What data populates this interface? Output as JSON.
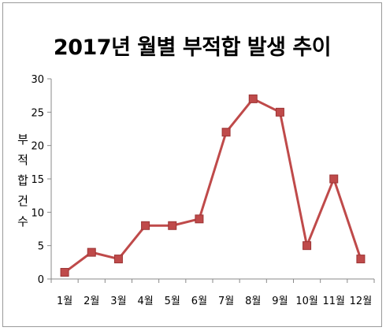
{
  "chart_data": {
    "type": "line",
    "title": "2017년 월별 부적합 발생 추이",
    "xlabel": "",
    "ylabel": "부적합건수",
    "categories": [
      "1월",
      "2월",
      "3월",
      "4월",
      "5월",
      "6월",
      "7월",
      "8월",
      "9월",
      "10월",
      "11월",
      "12월"
    ],
    "series": [
      {
        "values": [
          1,
          4,
          3,
          8,
          8,
          9,
          22,
          27,
          25,
          5,
          15,
          3
        ]
      }
    ],
    "ylim": [
      0,
      30
    ],
    "yticks": [
      0,
      5,
      10,
      15,
      20,
      25,
      30
    ],
    "grid": false,
    "legend": "none",
    "line_color": "#bf4a4a",
    "marker": "square"
  }
}
